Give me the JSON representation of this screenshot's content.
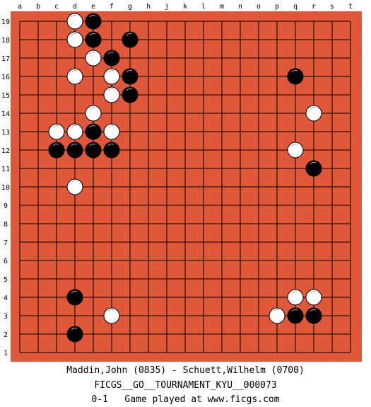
{
  "board": {
    "size": 19,
    "background_color": "#e0573a",
    "line_color": "#000000",
    "column_letters": [
      "a",
      "b",
      "c",
      "d",
      "e",
      "f",
      "g",
      "h",
      "j",
      "k",
      "l",
      "m",
      "n",
      "o",
      "p",
      "q",
      "r",
      "s",
      "t"
    ],
    "row_numbers": [
      "19",
      "18",
      "17",
      "16",
      "15",
      "14",
      "13",
      "12",
      "11",
      "10",
      "9",
      "8",
      "7",
      "6",
      "5",
      "4",
      "3",
      "2",
      "1"
    ],
    "stones": [
      {
        "color": "white",
        "col": "d",
        "row": 19
      },
      {
        "color": "black",
        "col": "e",
        "row": 19
      },
      {
        "color": "white",
        "col": "d",
        "row": 18
      },
      {
        "color": "black",
        "col": "e",
        "row": 18
      },
      {
        "color": "black",
        "col": "g",
        "row": 18
      },
      {
        "color": "white",
        "col": "e",
        "row": 17
      },
      {
        "color": "black",
        "col": "f",
        "row": 17
      },
      {
        "color": "white",
        "col": "d",
        "row": 16
      },
      {
        "color": "white",
        "col": "f",
        "row": 16
      },
      {
        "color": "black",
        "col": "g",
        "row": 16
      },
      {
        "color": "black",
        "col": "q",
        "row": 16
      },
      {
        "color": "white",
        "col": "f",
        "row": 15
      },
      {
        "color": "black",
        "col": "g",
        "row": 15
      },
      {
        "color": "white",
        "col": "e",
        "row": 14
      },
      {
        "color": "white",
        "col": "r",
        "row": 14
      },
      {
        "color": "white",
        "col": "c",
        "row": 13
      },
      {
        "color": "white",
        "col": "d",
        "row": 13
      },
      {
        "color": "black",
        "col": "e",
        "row": 13
      },
      {
        "color": "white",
        "col": "f",
        "row": 13
      },
      {
        "color": "black",
        "col": "c",
        "row": 12
      },
      {
        "color": "black",
        "col": "d",
        "row": 12
      },
      {
        "color": "black",
        "col": "e",
        "row": 12
      },
      {
        "color": "black",
        "col": "f",
        "row": 12
      },
      {
        "color": "white",
        "col": "q",
        "row": 12
      },
      {
        "color": "black",
        "col": "r",
        "row": 11
      },
      {
        "color": "white",
        "col": "d",
        "row": 10
      },
      {
        "color": "black",
        "col": "d",
        "row": 4
      },
      {
        "color": "white",
        "col": "q",
        "row": 4
      },
      {
        "color": "white",
        "col": "r",
        "row": 4
      },
      {
        "color": "white",
        "col": "f",
        "row": 3
      },
      {
        "color": "white",
        "col": "p",
        "row": 3
      },
      {
        "color": "black",
        "col": "q",
        "row": 3
      },
      {
        "color": "black",
        "col": "r",
        "row": 3
      },
      {
        "color": "black",
        "col": "d",
        "row": 2
      }
    ]
  },
  "caption": {
    "players": "Maddin,John (0835) - Schuett,Wilhelm (0700)",
    "tournament": "FICGS__GO__TOURNAMENT_KYU__000073",
    "result_line": "0-1   Game played at www.ficgs.com"
  }
}
